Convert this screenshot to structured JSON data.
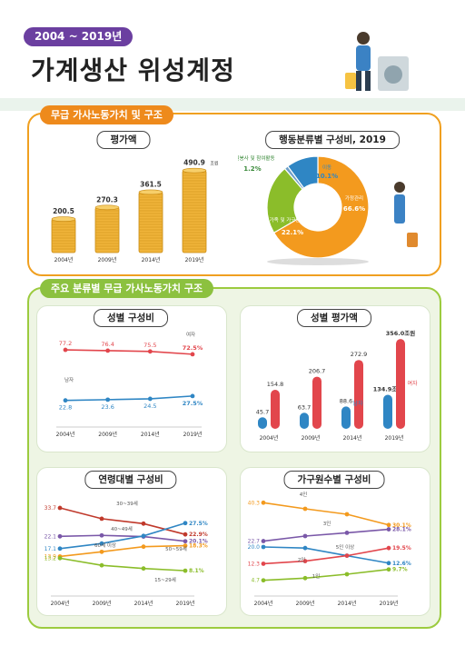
{
  "header": {
    "badge": "2004 ~ 2019년",
    "title": "가계생산 위성계정"
  },
  "section1": {
    "label": "무급 가사노동가치 및 구조"
  },
  "section2": {
    "label": "주요 분류별 무급 가사노동가치 구조"
  },
  "colors": {
    "orange": "#f39a1e",
    "blue": "#2f86c4",
    "red": "#e2464c",
    "green": "#8bbd2a",
    "purple": "#7a58a8",
    "brown": "#c0392b",
    "gray": "#8a8a8a"
  },
  "chart_data": [
    {
      "id": "eval",
      "type": "bar",
      "title": "평가액",
      "categories": [
        "2004년",
        "2009년",
        "2014년",
        "2019년"
      ],
      "values": [
        200.5,
        270.3,
        361.5,
        490.9
      ],
      "value_labels": [
        "200.5",
        "270.3",
        "361.5",
        "490.9"
      ],
      "unit": "조원",
      "ylim": [
        0,
        500
      ]
    },
    {
      "id": "donut",
      "type": "pie",
      "title": "행동분류별 구성비, 2019",
      "slices": [
        {
          "label": "가정관리",
          "value": 66.6,
          "text": "66.6%",
          "color": "#f39a1e"
        },
        {
          "label": "가족 및 가구원 돌보기",
          "value": 22.1,
          "text": "22.1%",
          "color": "#8bbd2a"
        },
        {
          "label": "자원봉사 및 참여활동",
          "value": 1.2,
          "text": "1.2%",
          "color": "#6fa0c8"
        },
        {
          "label": "이동",
          "value": 10.1,
          "text": "10.1%",
          "color": "#2f86c4"
        }
      ]
    },
    {
      "id": "gender_share",
      "type": "line",
      "title": "성별 구성비",
      "categories": [
        "2004년",
        "2009년",
        "2014년",
        "2019년"
      ],
      "ylim": [
        0,
        90
      ],
      "series": [
        {
          "name": "여자",
          "values": [
            77.2,
            76.4,
            75.5,
            72.5
          ],
          "labels": [
            "77.2",
            "76.4",
            "75.5",
            "72.5%"
          ],
          "color": "#e2464c"
        },
        {
          "name": "남자",
          "values": [
            22.8,
            23.6,
            24.5,
            27.5
          ],
          "labels": [
            "22.8",
            "23.6",
            "24.5",
            "27.5%"
          ],
          "color": "#2f86c4"
        }
      ]
    },
    {
      "id": "gender_value",
      "type": "bar",
      "title": "성별 평가액",
      "categories": [
        "2004년",
        "2009년",
        "2014년",
        "2019년"
      ],
      "ylim": [
        0,
        360
      ],
      "unit": "조원",
      "series": [
        {
          "name": "남자",
          "values": [
            45.7,
            63.7,
            88.6,
            134.9
          ],
          "labels": [
            "45.7",
            "63.7",
            "88.6",
            "134.9조원"
          ],
          "color": "#2f86c4"
        },
        {
          "name": "여자",
          "values": [
            154.8,
            206.7,
            272.9,
            356.0
          ],
          "labels": [
            "154.8",
            "206.7",
            "272.9",
            "356.0조원"
          ],
          "color": "#e2464c"
        }
      ]
    },
    {
      "id": "age_share",
      "type": "line",
      "title": "연령대별 구성비",
      "categories": [
        "2004년",
        "2009년",
        "2014년",
        "2019년"
      ],
      "ylim": [
        0,
        40
      ],
      "series": [
        {
          "name": "30~39세",
          "values": [
            33.7,
            29.3,
            27.3,
            22.9
          ],
          "start": "33.7",
          "end": "22.9%",
          "color": "#c0392b"
        },
        {
          "name": "40~49세",
          "values": [
            22.1,
            22.5,
            22.0,
            20.1
          ],
          "start": "22.1",
          "end": "20.1%",
          "color": "#7a58a8"
        },
        {
          "name": "60세 이상",
          "values": [
            17.1,
            19.2,
            22.3,
            27.5
          ],
          "start": "17.1",
          "end": "27.5%",
          "color": "#2f86c4"
        },
        {
          "name": "50~59세",
          "values": [
            13.9,
            15.8,
            17.9,
            18.3
          ],
          "start": "13.9",
          "end": "18.3%",
          "color": "#f39a1e"
        },
        {
          "name": "15~29세",
          "values": [
            13.2,
            10.3,
            9.0,
            8.1
          ],
          "start": "13.2",
          "end": "8.1%",
          "color": "#8bbd2a"
        }
      ]
    },
    {
      "id": "hh_share",
      "type": "line",
      "title": "가구원수별 구성비",
      "categories": [
        "2004년",
        "2009년",
        "2014년",
        "2019년"
      ],
      "ylim": [
        0,
        45
      ],
      "series": [
        {
          "name": "4인",
          "values": [
            40.3,
            37.5,
            35.0,
            30.1
          ],
          "start": "40.3",
          "end": "30.1%",
          "color": "#f39a1e"
        },
        {
          "name": "3인",
          "values": [
            22.7,
            25.0,
            26.5,
            28.1
          ],
          "start": "22.7",
          "end": "28.1%",
          "color": "#7a58a8"
        },
        {
          "name": "5인 이상",
          "values": [
            20.0,
            19.5,
            16.0,
            12.6
          ],
          "start": "20.0",
          "end": "12.6%",
          "color": "#2f86c4"
        },
        {
          "name": "2인",
          "values": [
            12.3,
            13.5,
            16.0,
            19.5
          ],
          "start": "12.3",
          "end": "19.5%",
          "color": "#e2464c"
        },
        {
          "name": "1인",
          "values": [
            4.7,
            5.7,
            7.5,
            9.7
          ],
          "start": "4.7",
          "end": "9.7%",
          "color": "#8bbd2a"
        }
      ]
    }
  ]
}
